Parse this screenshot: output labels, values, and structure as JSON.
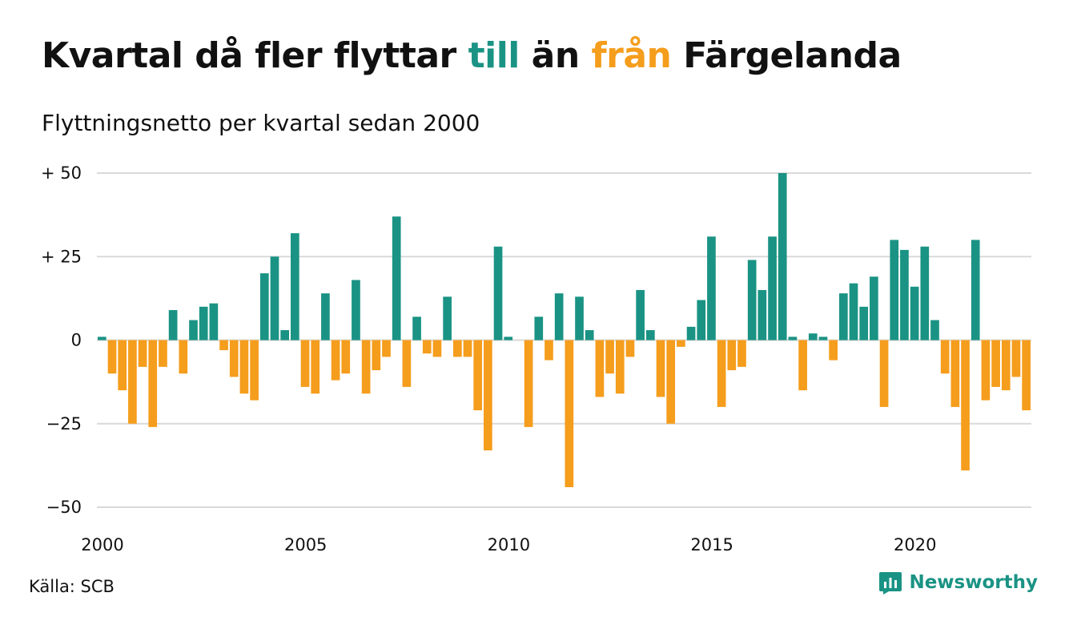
{
  "title": {
    "part1": "Kvartal då fler flyttar ",
    "word_till": "till",
    "part2": " än ",
    "word_fran": "från",
    "part3": " Färgelanda"
  },
  "subtitle": "Flyttningsnetto per kvartal sedan 2000",
  "source": "Källa: SCB",
  "brand": {
    "name": "Newsworthy",
    "icon": "newsworthy-logo-icon"
  },
  "colors": {
    "positive": "#1a9384",
    "negative": "#f59d1c",
    "grid": "#d9d9d9",
    "text": "#111111"
  },
  "chart_data": {
    "type": "bar",
    "title": "Kvartal då fler flyttar till än från Färgelanda",
    "subtitle": "Flyttningsnetto per kvartal sedan 2000",
    "xlabel": "",
    "ylabel": "",
    "x_start_year": 2000,
    "x_tick_years": [
      2000,
      2005,
      2010,
      2015,
      2020
    ],
    "x_tick_labels": [
      "2000",
      "2005",
      "2010",
      "2015",
      "2020"
    ],
    "y_ticks": [
      50,
      25,
      0,
      -25,
      -50
    ],
    "y_tick_labels": [
      "+ 50",
      "+ 25",
      "0",
      "−25",
      "−50"
    ],
    "ylim": [
      -50,
      50
    ],
    "grid": true,
    "legend": "none",
    "positive_color": "#1a9384",
    "negative_color": "#f59d1c",
    "values": [
      1,
      -10,
      -15,
      -25,
      -8,
      -26,
      -8,
      9,
      -10,
      6,
      10,
      11,
      -3,
      -11,
      -16,
      -18,
      20,
      25,
      3,
      32,
      -14,
      -16,
      14,
      -12,
      -10,
      18,
      -16,
      -9,
      -5,
      37,
      -14,
      7,
      -4,
      -5,
      13,
      -5,
      -5,
      -21,
      -33,
      28,
      1,
      0,
      -26,
      7,
      -6,
      14,
      -44,
      13,
      3,
      -17,
      -10,
      -16,
      -5,
      15,
      3,
      -17,
      -25,
      -2,
      4,
      12,
      31,
      -20,
      -9,
      -8,
      24,
      15,
      31,
      50,
      1,
      -15,
      2,
      1,
      -6,
      14,
      17,
      10,
      19,
      -20,
      30,
      27,
      16,
      28,
      6,
      -10,
      -20,
      -39,
      30,
      -18,
      -14,
      -15,
      -11,
      -21
    ]
  }
}
